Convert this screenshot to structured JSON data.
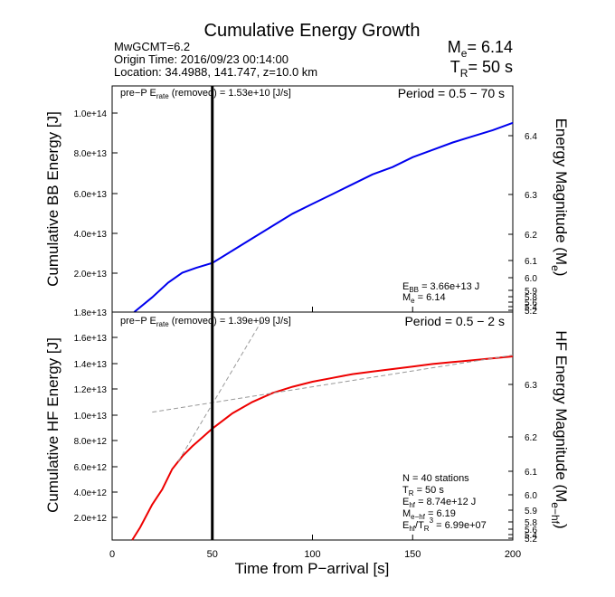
{
  "header": {
    "title": "Cumulative Energy Growth",
    "event": "MwGCMT=6.2",
    "origin_time": "Origin Time: 2016/09/23 00:14:00",
    "location": "Location: 34.4988, 141.747, z=10.0 km",
    "me_label": "M",
    "me_sub": "e",
    "me_value": "= 6.14",
    "tr_label": "T",
    "tr_sub": "R",
    "tr_value": "= 50 s"
  },
  "xaxis": {
    "label": "Time from P−arrival [s]",
    "range": [
      0,
      200
    ],
    "ticks": [
      "0",
      "50",
      "100",
      "150",
      "200"
    ]
  },
  "top_panel": {
    "ylabel": "Cumulative BB Energy [J]",
    "y2label_main": "Energy Magnitude (M",
    "y2label_sub": "e",
    "y2label_end": ")",
    "period": "Period = 0.5 − 70 s",
    "prep_a": "pre−P E",
    "prep_sub": "rate",
    "prep_b": " (removed) = 1.53e+10 [J/s]",
    "ebb_label": "E",
    "ebb_sub": "BB",
    "ebb_value": " = 3.66e+13 J",
    "me_label": "M",
    "me_sub": "e",
    "me_value": " = 6.14",
    "ylim": [
      18000000000000.0,
      110000000000000.0
    ],
    "yticks": [
      "1.8e+13",
      "2.0e+13",
      "4.0e+13",
      "6.0e+13",
      "8.0e+13",
      "1.0e+14"
    ],
    "mag_ticks": [
      "6.4",
      "6.3",
      "6.2",
      "6.1",
      "6.0",
      "5.9",
      "5.8",
      "5.6",
      "5.4",
      "5.2"
    ]
  },
  "bottom_panel": {
    "ylabel": "Cumulative HF Energy [J]",
    "y2label_main": "HF Energy Magnitude (M",
    "y2label_sub": "e−hf",
    "y2label_end": ")",
    "period": "Period = 0.5 − 2 s",
    "prep_a": "pre−P E",
    "prep_sub": "rate",
    "prep_b": " (removed) = 1.39e+09 [J/s]",
    "stations": "N = 40 stations",
    "tr_label": "T",
    "tr_sub": "R",
    "tr_value": " = 50  s",
    "ehf_label": "E",
    "ehf_sub": "hf",
    "ehf_value": " = 8.74e+12 J",
    "mehf_label": "M",
    "mehf_sub": "e−hf",
    "mehf_value": " = 6.19",
    "ratio_label": "E",
    "ratio_sub1": "hf",
    "ratio_mid": "/T",
    "ratio_sub2": "R",
    "ratio_sup": "3",
    "ratio_value": " =  6.99e+07",
    "ylim": [
      0,
      18000000000000.0
    ],
    "yticks": [
      "2.0e+12",
      "4.0e+12",
      "6.0e+12",
      "8.0e+12",
      "1.0e+13",
      "1.2e+13",
      "1.4e+13",
      "1.6e+13"
    ],
    "mag_ticks": [
      "6.3",
      "6.2",
      "6.1",
      "6.0",
      "5.9",
      "5.8",
      "5.6",
      "5.4",
      "5.2"
    ]
  },
  "chart_data": [
    {
      "type": "line",
      "title": "Cumulative Energy Growth",
      "xlabel": "Time from P−arrival [s]",
      "ylabel": "Cumulative BB Energy [J]",
      "xlim": [
        0,
        200
      ],
      "ylim": [
        18000000000000.0,
        110000000000000.0
      ],
      "series": [
        {
          "color": "#0000ee",
          "x": [
            11,
            20,
            28,
            35,
            42,
            50,
            60,
            70,
            80,
            90,
            100,
            110,
            120,
            130,
            140,
            150,
            160,
            170,
            180,
            190,
            200
          ],
          "y": [
            18000000000000.0,
            24000000000000.0,
            30000000000000.0,
            34000000000000.0,
            36000000000000.0,
            38000000000000.0,
            43000000000000.0,
            48000000000000.0,
            53000000000000.0,
            58000000000000.0,
            62000000000000.0,
            66000000000000.0,
            70000000000000.0,
            74000000000000.0,
            77000000000000.0,
            81000000000000.0,
            84000000000000.0,
            87000000000000.0,
            89500000000000.0,
            92000000000000.0,
            95000000000000.0
          ]
        }
      ],
      "vline_x": 50
    },
    {
      "type": "line",
      "xlabel": "Time from P−arrival [s]",
      "ylabel": "Cumulative HF Energy [J]",
      "xlim": [
        0,
        200
      ],
      "ylim": [
        0,
        18000000000000.0
      ],
      "series": [
        {
          "color": "#ee0000",
          "x": [
            10,
            14,
            20,
            25,
            30,
            35,
            40,
            45,
            50,
            55,
            60,
            70,
            80,
            90,
            100,
            110,
            120,
            130,
            140,
            150,
            160,
            170,
            180,
            190,
            200
          ],
          "y": [
            0,
            1000000000000.0,
            2800000000000.0,
            4000000000000.0,
            5600000000000.0,
            6600000000000.0,
            7400000000000.0,
            8100000000000.0,
            8800000000000.0,
            9400000000000.0,
            10000000000000.0,
            10900000000000.0,
            11600000000000.0,
            12100000000000.0,
            12500000000000.0,
            12800000000000.0,
            13100000000000.0,
            13300000000000.0,
            13500000000000.0,
            13700000000000.0,
            13900000000000.0,
            14050000000000.0,
            14200000000000.0,
            14350000000000.0,
            14500000000000.0
          ]
        },
        {
          "color": "#999999",
          "dashed": true,
          "x": [
            20,
            200
          ],
          "y": [
            10100000000000.0,
            14600000000000.0
          ]
        },
        {
          "color": "#999999",
          "dashed": true,
          "x": [
            33,
            75
          ],
          "y": [
            6200000000000.0,
            17400000000000.0
          ]
        }
      ],
      "vline_x": 50
    }
  ]
}
